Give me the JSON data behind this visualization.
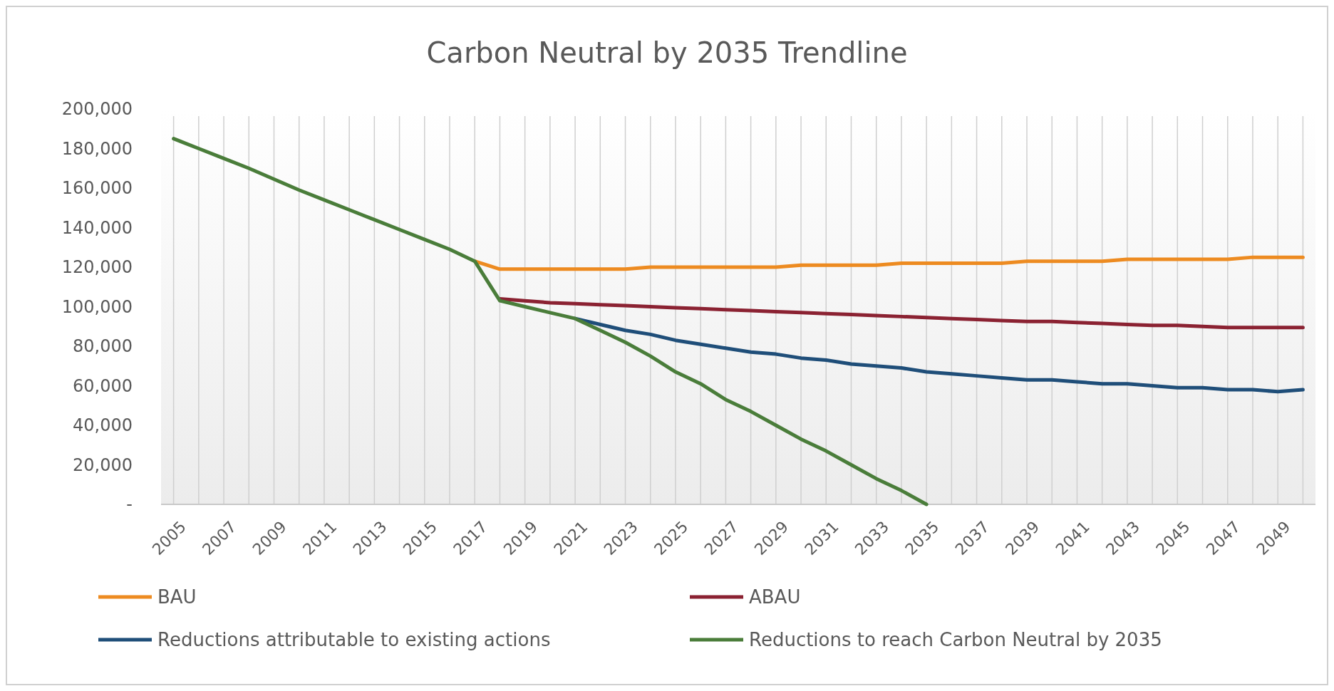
{
  "chart_data": {
    "type": "line",
    "title": "Carbon Neutral by 2035 Trendline",
    "categories": [
      "2005",
      null,
      "2007",
      null,
      "2009",
      null,
      "2011",
      null,
      "2013",
      null,
      "2015",
      null,
      "2017",
      null,
      "2019",
      null,
      "2021",
      null,
      "2023",
      null,
      "2025",
      null,
      "2027",
      null,
      "2029",
      null,
      "2031",
      null,
      "2033",
      null,
      "2035",
      null,
      "2037",
      null,
      "2039",
      null,
      "2041",
      null,
      "2043",
      null,
      "2045",
      null,
      "2047",
      null,
      "2049",
      null
    ],
    "series": [
      {
        "name": "BAU",
        "color": "#ed8b21",
        "values": [
          null,
          null,
          null,
          null,
          null,
          null,
          null,
          null,
          null,
          null,
          null,
          null,
          123000,
          119000,
          119000,
          119000,
          119000,
          119000,
          119000,
          120000,
          120000,
          120000,
          120000,
          120000,
          120000,
          121000,
          121000,
          121000,
          121000,
          122000,
          122000,
          122000,
          122000,
          122000,
          123000,
          123000,
          123000,
          123000,
          124000,
          124000,
          124000,
          124000,
          124000,
          125000,
          125000,
          125000
        ]
      },
      {
        "name": "ABAU",
        "color": "#8b2232",
        "values": [
          null,
          null,
          null,
          null,
          null,
          null,
          null,
          null,
          null,
          null,
          null,
          null,
          null,
          104000,
          103000,
          102000,
          101500,
          101000,
          100500,
          100000,
          99500,
          99000,
          98500,
          98000,
          97500,
          97000,
          96500,
          96000,
          95500,
          95000,
          94500,
          94000,
          93500,
          93000,
          92500,
          92500,
          92000,
          91500,
          91000,
          90500,
          90500,
          90000,
          89500,
          89500,
          89500,
          89500
        ]
      },
      {
        "name": "Reductions attributable to existing actions",
        "color": "#1f4e79",
        "values": [
          null,
          null,
          null,
          null,
          null,
          null,
          null,
          null,
          null,
          null,
          null,
          null,
          null,
          null,
          null,
          null,
          94000,
          91000,
          88000,
          86000,
          83000,
          81000,
          79000,
          77000,
          76000,
          74000,
          73000,
          71000,
          70000,
          69000,
          67000,
          66000,
          65000,
          64000,
          63000,
          63000,
          62000,
          61000,
          61000,
          60000,
          59000,
          59000,
          58000,
          58000,
          57000,
          58000
        ]
      },
      {
        "name": "Reductions to reach Carbon Neutral by 2035",
        "color": "#4a7d3a",
        "values": [
          185000,
          180000,
          175000,
          170000,
          164500,
          159000,
          154000,
          149000,
          144000,
          139000,
          134000,
          129000,
          123000,
          103000,
          100000,
          97000,
          94000,
          88000,
          82000,
          75000,
          67000,
          61000,
          53000,
          47000,
          40000,
          33000,
          27000,
          20000,
          13000,
          7000,
          0,
          null,
          null,
          null,
          null,
          null,
          null,
          null,
          null,
          null,
          null,
          null,
          null,
          null,
          null,
          null
        ]
      }
    ],
    "ylim": [
      0,
      200000
    ],
    "yticks": [
      {
        "value": 0,
        "label": "-"
      },
      {
        "value": 20000,
        "label": "20,000"
      },
      {
        "value": 40000,
        "label": "40,000"
      },
      {
        "value": 60000,
        "label": "60,000"
      },
      {
        "value": 80000,
        "label": "80,000"
      },
      {
        "value": 100000,
        "label": "100,000"
      },
      {
        "value": 120000,
        "label": "120,000"
      },
      {
        "value": 140000,
        "label": "140,000"
      },
      {
        "value": 160000,
        "label": "160,000"
      },
      {
        "value": 180000,
        "label": "180,000"
      },
      {
        "value": 200000,
        "label": "200,000"
      }
    ],
    "grid": "x",
    "legend": "bottom",
    "marker": "none",
    "line_style": "solid"
  }
}
